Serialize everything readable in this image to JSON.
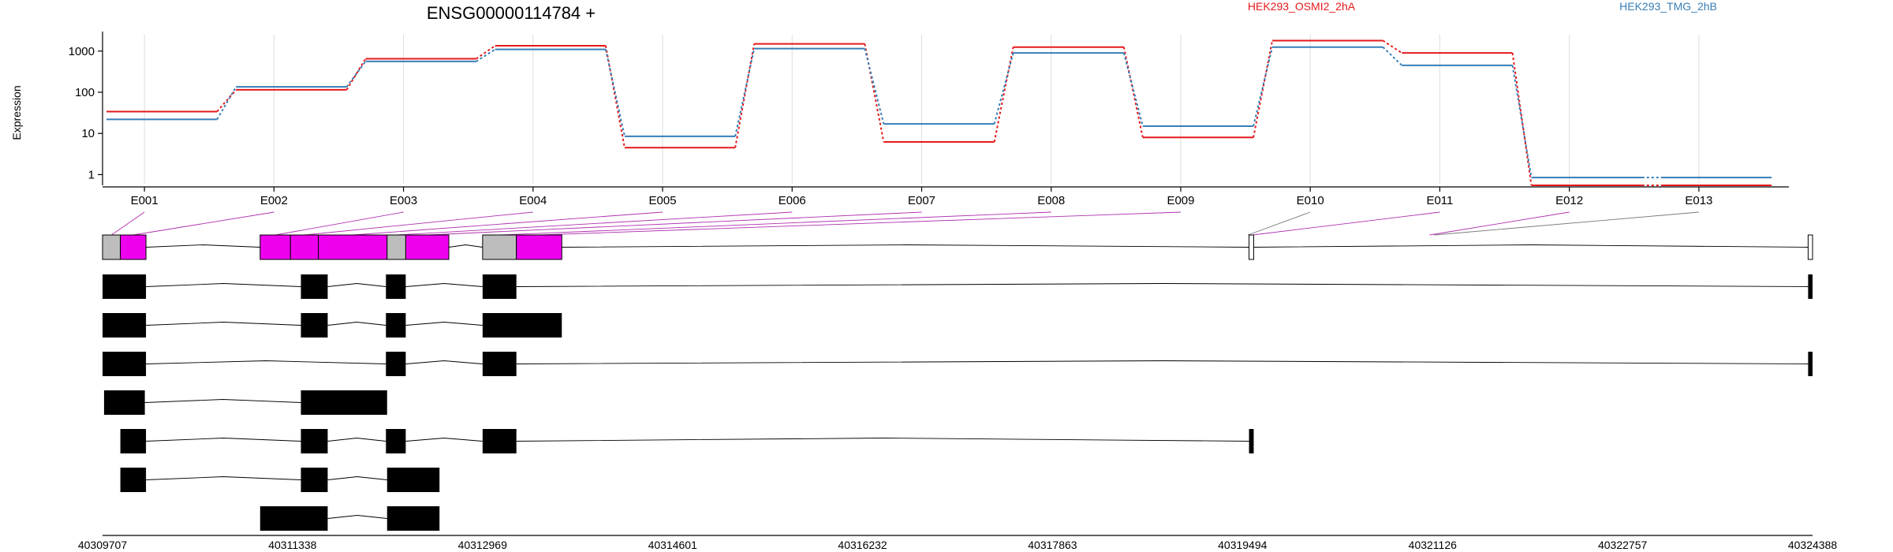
{
  "chart_data": {
    "type": "line",
    "title": "ENSG00000114784 +",
    "ylabel": "Expression",
    "y_scale": "log10",
    "ylim": [
      0.6,
      2500
    ],
    "y_ticks": [
      {
        "value": 1,
        "label": "1"
      },
      {
        "value": 10,
        "label": "10"
      },
      {
        "value": 100,
        "label": "100"
      },
      {
        "value": 1000,
        "label": "1000"
      }
    ],
    "grid": "vertical",
    "legend_placement": "top",
    "categories": [
      "E001",
      "E002",
      "E003",
      "E004",
      "E005",
      "E006",
      "E007",
      "E008",
      "E009",
      "E010",
      "E011",
      "E012",
      "E013"
    ],
    "series": [
      {
        "name": "HEK293_OSMI2_2hA",
        "color": "#e41a1c",
        "values": [
          34,
          115,
          650,
          1350,
          4.5,
          1500,
          6.2,
          1250,
          8,
          1800,
          900,
          0.55,
          0.55
        ]
      },
      {
        "name": "HEK293_TMG_2hB",
        "color": "#377eb8",
        "values": [
          22,
          135,
          560,
          1100,
          8.5,
          1150,
          17,
          900,
          15,
          1250,
          450,
          0.85,
          0.85
        ]
      }
    ],
    "exon_intervals": [
      [
        40309707,
        40309860
      ],
      [
        40309860,
        40310080
      ],
      [
        40311060,
        40311320
      ],
      [
        40311320,
        40311560
      ],
      [
        40311560,
        40312150
      ],
      [
        40312150,
        40312310
      ],
      [
        40312310,
        40312680
      ],
      [
        40312970,
        40313260
      ],
      [
        40313260,
        40313650
      ],
      [
        40319520,
        40319560
      ],
      [
        40319560,
        40319600
      ],
      [
        40321080,
        40321120
      ],
      [
        40321120,
        40321160
      ]
    ],
    "genomic_ticks": [
      {
        "value": 40309707,
        "label": "40309707"
      },
      {
        "value": 40311338,
        "label": "40311338"
      },
      {
        "value": 40312969,
        "label": "40312969"
      },
      {
        "value": 40314601,
        "label": "40314601"
      },
      {
        "value": 40316232,
        "label": "40316232"
      },
      {
        "value": 40317863,
        "label": "40317863"
      },
      {
        "value": 40319494,
        "label": "40319494"
      },
      {
        "value": 40321126,
        "label": "40321126"
      },
      {
        "value": 40322757,
        "label": "40322757"
      },
      {
        "value": 40324388,
        "label": "40324388"
      }
    ],
    "gene_model": {
      "exons": [
        {
          "start": 40309707,
          "end": 40309860,
          "fill": "#bdbdbd"
        },
        {
          "start": 40309860,
          "end": 40310080,
          "fill": "#ee00ee"
        },
        {
          "start": 40311060,
          "end": 40311320,
          "fill": "#ee00ee"
        },
        {
          "start": 40311320,
          "end": 40311560,
          "fill": "#ee00ee"
        },
        {
          "start": 40311560,
          "end": 40312150,
          "fill": "#ee00ee"
        },
        {
          "start": 40312150,
          "end": 40312310,
          "fill": "#bdbdbd"
        },
        {
          "start": 40312310,
          "end": 40312680,
          "fill": "#ee00ee"
        },
        {
          "start": 40312970,
          "end": 40313260,
          "fill": "#bdbdbd"
        },
        {
          "start": 40313260,
          "end": 40313650,
          "fill": "#ee00ee"
        },
        {
          "start": 40319550,
          "end": 40319590,
          "fill": "#ffffff"
        },
        {
          "start": 40324350,
          "end": 40324388,
          "fill": "#ffffff"
        }
      ]
    },
    "transcripts": [
      {
        "exons": [
          [
            40309707,
            40310080
          ],
          [
            40311410,
            40311640
          ],
          [
            40312140,
            40312310
          ],
          [
            40312970,
            40313260
          ],
          [
            40324350,
            40324388
          ]
        ]
      },
      {
        "exons": [
          [
            40309707,
            40310080
          ],
          [
            40311410,
            40311640
          ],
          [
            40312140,
            40312310
          ],
          [
            40312970,
            40313650
          ]
        ]
      },
      {
        "exons": [
          [
            40309707,
            40310080
          ],
          [
            40312140,
            40312310
          ],
          [
            40312970,
            40313260
          ],
          [
            40324350,
            40324388
          ]
        ]
      },
      {
        "exons": [
          [
            40309720,
            40310070
          ],
          [
            40311410,
            40312150
          ]
        ]
      },
      {
        "exons": [
          [
            40309860,
            40310080
          ],
          [
            40311410,
            40311640
          ],
          [
            40312140,
            40312310
          ],
          [
            40312970,
            40313260
          ],
          [
            40319550,
            40319590
          ]
        ]
      },
      {
        "exons": [
          [
            40309860,
            40310080
          ],
          [
            40311410,
            40311640
          ],
          [
            40312150,
            40312600
          ]
        ]
      },
      {
        "exons": [
          [
            40311060,
            40311640
          ],
          [
            40312150,
            40312600
          ]
        ]
      }
    ]
  }
}
